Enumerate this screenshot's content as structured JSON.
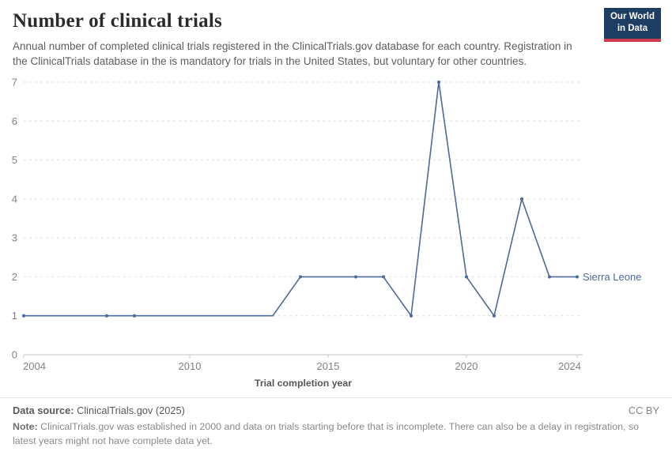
{
  "header": {
    "title": "Number of clinical trials",
    "subtitle": "Annual number of completed clinical trials registered in the ClinicalTrials.gov database for each country. Registration in the ClinicalTrials database in the is mandatory for trials in the United States, but voluntary for other countries.",
    "logo": {
      "line1": "Our World",
      "line2": "in Data",
      "bg_color": "#1d3d63",
      "accent_color": "#d13b4c"
    }
  },
  "chart_data": {
    "type": "line",
    "title": "Number of clinical trials",
    "xlabel": "Trial completion year",
    "ylabel": "",
    "xlim": [
      2004,
      2024
    ],
    "ylim": [
      0,
      7
    ],
    "x_ticks": [
      2004,
      2010,
      2015,
      2020,
      2024
    ],
    "y_ticks": [
      0,
      1,
      2,
      3,
      4,
      5,
      6,
      7
    ],
    "grid": "horizontal-dashed",
    "legend_position": "end-of-line",
    "series": [
      {
        "name": "Sierra Leone",
        "color": "#4c6a9c",
        "points": [
          [
            2004,
            1
          ],
          [
            2007,
            1
          ],
          [
            2008,
            1
          ],
          [
            2013,
            1
          ],
          [
            2014,
            2
          ],
          [
            2016,
            2
          ],
          [
            2017,
            2
          ],
          [
            2018,
            1
          ],
          [
            2019,
            7
          ],
          [
            2020,
            2
          ],
          [
            2021,
            1
          ],
          [
            2022,
            4
          ],
          [
            2023,
            2
          ],
          [
            2024,
            2
          ]
        ],
        "marker_years": [
          2004,
          2007,
          2008,
          2014,
          2016,
          2017,
          2018,
          2019,
          2020,
          2021,
          2022,
          2023,
          2024
        ]
      }
    ]
  },
  "footer": {
    "datasource_label": "Data source:",
    "datasource_value": " ClinicalTrials.gov (2025)",
    "license": "CC BY",
    "note_label": "Note:",
    "note_text": " ClinicalTrials.gov was established in 2000 and data on trials starting before that is incomplete. There can also be a delay in registration, so latest years might not have complete data yet."
  }
}
